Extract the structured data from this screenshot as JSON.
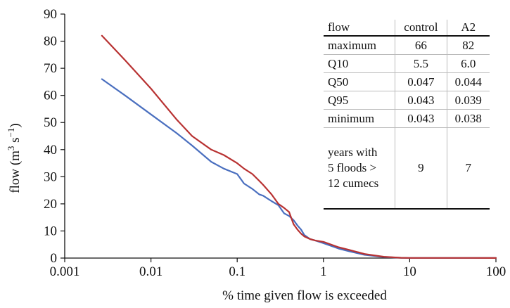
{
  "chart_data": {
    "type": "line",
    "title": "",
    "xlabel": "% time given flow is exceeded",
    "ylabel_main": "flow (m",
    "ylabel_sup1": "3",
    "ylabel_mid": " s",
    "ylabel_sup2": "−1",
    "ylabel_end": ")",
    "x_scale": "log",
    "xlim": [
      0.001,
      100
    ],
    "ylim": [
      0,
      90
    ],
    "x_ticks": [
      0.001,
      0.01,
      0.1,
      1,
      10,
      100
    ],
    "x_tick_labels": [
      "0.001",
      "0.01",
      "0.1",
      "1",
      "10",
      "100"
    ],
    "y_ticks": [
      0,
      10,
      20,
      30,
      40,
      50,
      60,
      70,
      80,
      90
    ],
    "y_tick_labels": [
      "0",
      "10",
      "20",
      "30",
      "40",
      "50",
      "60",
      "70",
      "80",
      "90"
    ],
    "grid": false,
    "series": [
      {
        "name": "control",
        "color": "#4a6fbf",
        "x": [
          0.0027,
          0.005,
          0.01,
          0.02,
          0.03,
          0.05,
          0.07,
          0.1,
          0.12,
          0.15,
          0.18,
          0.2,
          0.25,
          0.3,
          0.35,
          0.4,
          0.45,
          0.5,
          0.55,
          0.6,
          0.7,
          0.8,
          1,
          1.5,
          2,
          3,
          5,
          8,
          10,
          20,
          50,
          100
        ],
        "y": [
          66,
          60,
          53,
          46,
          41.5,
          35.5,
          33,
          31,
          27.5,
          25.5,
          23.5,
          23,
          21,
          19.5,
          16.5,
          15.5,
          14,
          12,
          10.5,
          8.5,
          7,
          6.5,
          5.5,
          3.5,
          2.5,
          1.2,
          0.4,
          0.1,
          0.05,
          0.044,
          0.043,
          0.043
        ]
      },
      {
        "name": "A2",
        "color": "#b83232",
        "x": [
          0.0027,
          0.005,
          0.01,
          0.02,
          0.03,
          0.05,
          0.07,
          0.1,
          0.12,
          0.15,
          0.18,
          0.2,
          0.25,
          0.3,
          0.35,
          0.4,
          0.45,
          0.5,
          0.55,
          0.6,
          0.7,
          0.8,
          1,
          1.5,
          2,
          3,
          5,
          8,
          10,
          20,
          50,
          100
        ],
        "y": [
          82,
          73,
          62.5,
          51,
          45,
          40,
          38,
          35,
          33,
          31,
          28.5,
          27,
          23.5,
          20,
          18.5,
          17,
          12.5,
          10.5,
          9,
          8,
          7,
          6.5,
          6,
          4,
          3,
          1.5,
          0.5,
          0.1,
          0.05,
          0.04,
          0.039,
          0.038
        ]
      }
    ]
  },
  "table": {
    "headers": [
      "flow",
      "control",
      "A2"
    ],
    "rows": [
      {
        "label": "maximum",
        "control": "66",
        "a2": "82"
      },
      {
        "label": "Q10",
        "control": "5.5",
        "a2": "6.0"
      },
      {
        "label": "Q50",
        "control": "0.047",
        "a2": "0.044"
      },
      {
        "label": "Q95",
        "control": "0.043",
        "a2": "0.039"
      },
      {
        "label": "minimum",
        "control": "0.043",
        "a2": "0.038"
      }
    ],
    "last_row": {
      "label_line1": "years with",
      "label_line2": "5 floods >",
      "label_line3": "12 cumecs",
      "control": "9",
      "a2": "7"
    }
  }
}
